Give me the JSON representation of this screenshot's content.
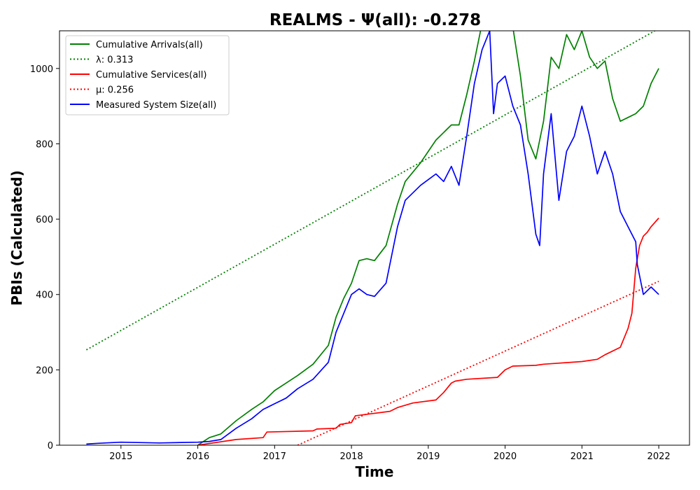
{
  "chart_data": {
    "type": "line",
    "title": "REALMS -  Ψ(all): -0.278",
    "xlabel": "Time",
    "ylabel": "PBIs (Calculated)",
    "xlim": [
      2014.2,
      2022.4
    ],
    "ylim": [
      0,
      1100
    ],
    "x_ticks": [
      2015,
      2016,
      2017,
      2018,
      2019,
      2020,
      2021,
      2022
    ],
    "y_ticks": [
      0,
      200,
      400,
      600,
      800,
      1000
    ],
    "grid": false,
    "legend_position": "top-left",
    "series": [
      {
        "name": "Cumulative Arrivals(all)",
        "color": "#008000",
        "style": "solid",
        "x": [
          2016.0,
          2016.15,
          2016.3,
          2016.5,
          2016.7,
          2016.85,
          2017.0,
          2017.15,
          2017.3,
          2017.5,
          2017.7,
          2017.8,
          2017.9,
          2018.0,
          2018.1,
          2018.2,
          2018.3,
          2018.45,
          2018.6,
          2018.7,
          2018.9,
          2019.1,
          2019.2,
          2019.3,
          2019.4,
          2019.5,
          2019.6,
          2019.7,
          2019.8,
          2019.9,
          2020.0,
          2020.1,
          2020.2,
          2020.3,
          2020.4,
          2020.5,
          2020.6,
          2020.7,
          2020.8,
          2020.9,
          2021.0,
          2021.1,
          2021.2,
          2021.3,
          2021.4,
          2021.5,
          2021.6,
          2021.7,
          2021.8,
          2021.9,
          2022.0
        ],
        "values": [
          0,
          20,
          30,
          65,
          95,
          115,
          145,
          165,
          185,
          215,
          265,
          340,
          390,
          430,
          490,
          495,
          490,
          530,
          640,
          700,
          750,
          810,
          830,
          850,
          850,
          930,
          1020,
          1120,
          1150,
          1130,
          1120,
          1110,
          980,
          810,
          760,
          860,
          1030,
          1000,
          1090,
          1050,
          1100,
          1030,
          1000,
          1020,
          920,
          860,
          870,
          880,
          900,
          960,
          1000
        ]
      },
      {
        "name": "λ: 0.313",
        "color": "#008000",
        "style": "dotted",
        "x": [
          2014.55,
          2021.95
        ],
        "values": [
          253,
          1100
        ]
      },
      {
        "name": "Cumulative Services(all)",
        "color": "#ff0000",
        "style": "solid",
        "x": [
          2016.0,
          2016.5,
          2016.85,
          2016.9,
          2017.5,
          2017.55,
          2017.8,
          2017.85,
          2018.0,
          2018.05,
          2018.5,
          2018.6,
          2018.8,
          2019.1,
          2019.2,
          2019.3,
          2019.35,
          2019.5,
          2019.9,
          2020.0,
          2020.1,
          2020.4,
          2020.5,
          2021.0,
          2021.2,
          2021.3,
          2021.5,
          2021.6,
          2021.65,
          2021.7,
          2021.75,
          2021.8,
          2021.85,
          2021.9,
          2022.0
        ],
        "values": [
          0,
          15,
          20,
          35,
          38,
          43,
          45,
          55,
          60,
          78,
          90,
          100,
          112,
          120,
          140,
          165,
          170,
          175,
          180,
          200,
          210,
          212,
          215,
          222,
          228,
          240,
          260,
          310,
          350,
          470,
          530,
          555,
          565,
          580,
          603
        ]
      },
      {
        "name": "μ: 0.256",
        "color": "#ff0000",
        "style": "dotted",
        "x": [
          2017.3,
          2022.0
        ],
        "values": [
          0,
          435
        ]
      },
      {
        "name": "Measured System Size(all)",
        "color": "#0000ff",
        "style": "solid",
        "x": [
          2014.55,
          2014.7,
          2015.0,
          2015.5,
          2016.0,
          2016.15,
          2016.3,
          2016.5,
          2016.7,
          2016.85,
          2017.0,
          2017.15,
          2017.3,
          2017.5,
          2017.7,
          2017.8,
          2017.9,
          2018.0,
          2018.1,
          2018.2,
          2018.3,
          2018.45,
          2018.6,
          2018.7,
          2018.9,
          2019.1,
          2019.2,
          2019.3,
          2019.4,
          2019.5,
          2019.6,
          2019.7,
          2019.8,
          2019.85,
          2019.9,
          2020.0,
          2020.1,
          2020.2,
          2020.3,
          2020.4,
          2020.45,
          2020.5,
          2020.6,
          2020.7,
          2020.8,
          2020.9,
          2021.0,
          2021.1,
          2021.2,
          2021.3,
          2021.4,
          2021.5,
          2021.6,
          2021.7,
          2021.72,
          2021.8,
          2021.9,
          2022.0
        ],
        "values": [
          3,
          5,
          8,
          6,
          8,
          10,
          15,
          45,
          70,
          95,
          110,
          125,
          150,
          175,
          220,
          300,
          350,
          400,
          415,
          400,
          395,
          430,
          580,
          650,
          690,
          720,
          700,
          740,
          690,
          820,
          960,
          1050,
          1100,
          880,
          960,
          980,
          900,
          850,
          720,
          560,
          530,
          720,
          880,
          650,
          780,
          820,
          900,
          820,
          720,
          780,
          720,
          620,
          580,
          540,
          480,
          400,
          420,
          400
        ]
      }
    ]
  }
}
